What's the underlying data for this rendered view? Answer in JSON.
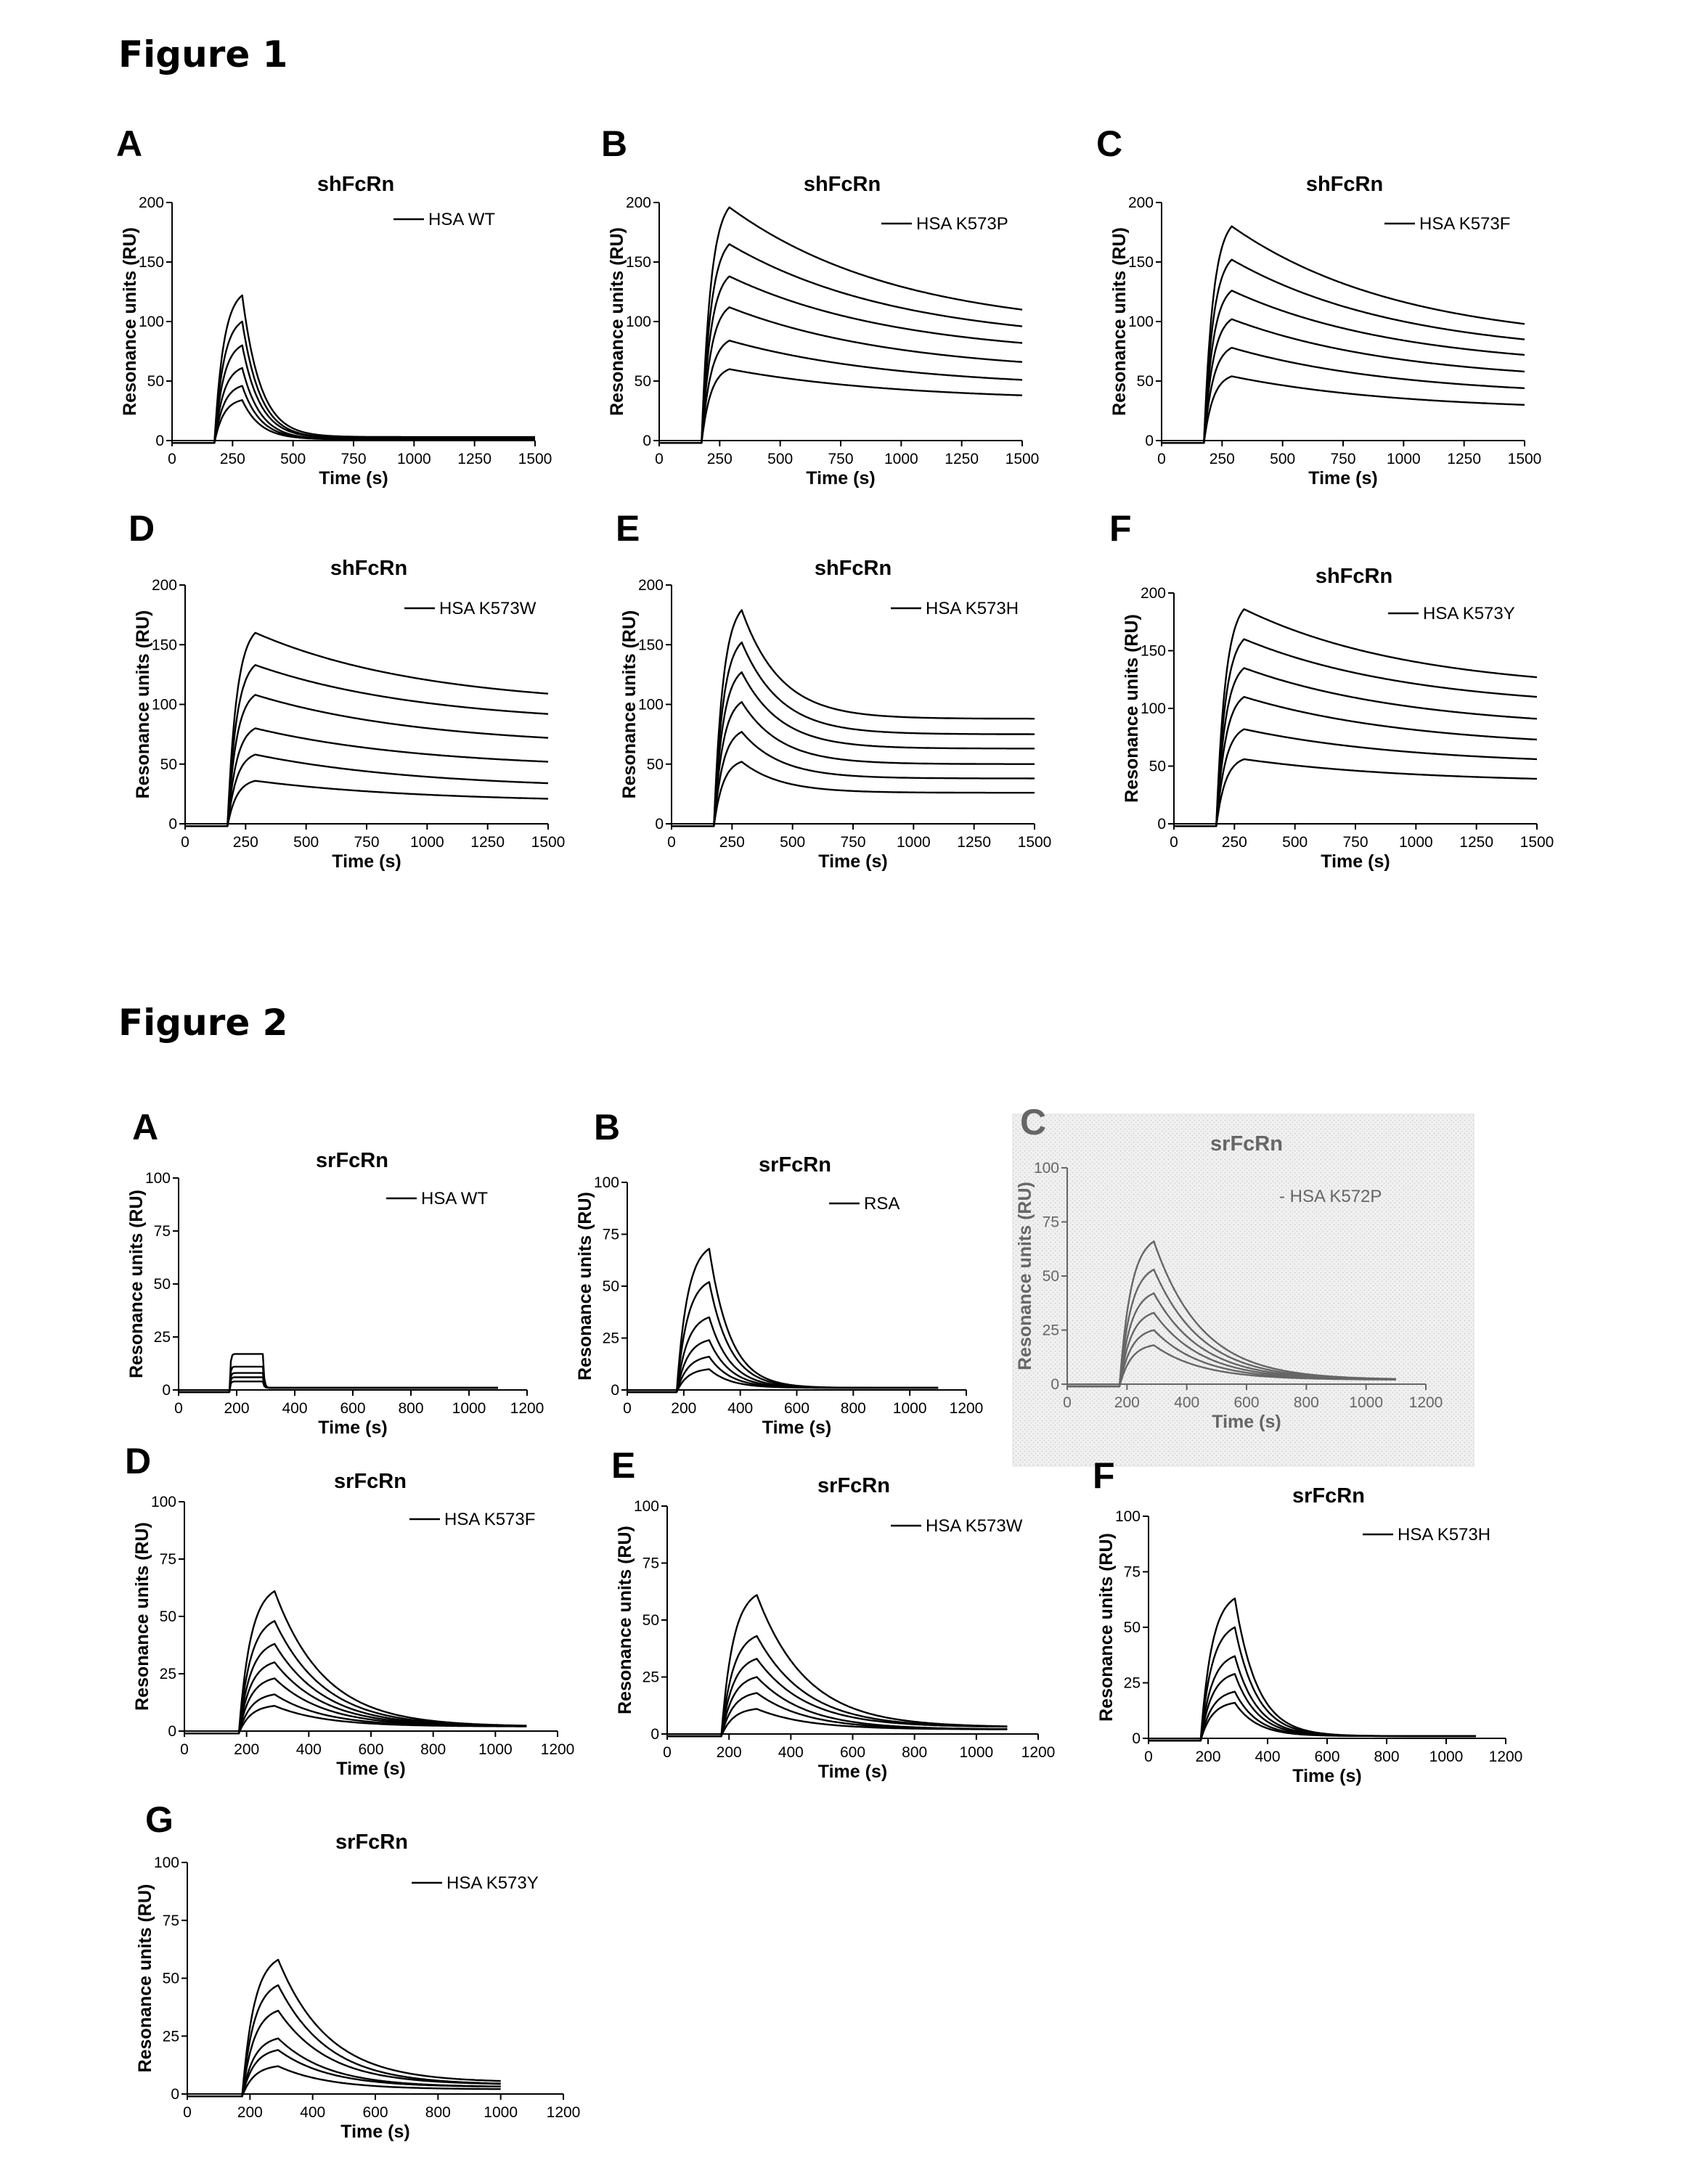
{
  "figures": [
    {
      "title": "Figure 1"
    },
    {
      "title": "Figure 2"
    }
  ],
  "chart_data": [
    {
      "figure": "Figure 1",
      "panel": "A",
      "type": "line",
      "title": "shFcRn",
      "xlabel": "Time (s)",
      "ylabel": "Resonance units (RU)",
      "xlim": [
        0,
        1500
      ],
      "ylim": [
        0,
        200
      ],
      "xticks": [
        0,
        250,
        500,
        750,
        1000,
        1250,
        1500
      ],
      "yticks": [
        0,
        50,
        100,
        150,
        200
      ],
      "legend": "HSA WT",
      "injection_start_s": 175,
      "injection_end_s": 290,
      "baseline": -2,
      "peaks": [
        122,
        100,
        80,
        61,
        46,
        34
      ],
      "ends": [
        3,
        2,
        2,
        1,
        1,
        1
      ],
      "decay": "fast"
    },
    {
      "figure": "Figure 1",
      "panel": "B",
      "type": "line",
      "title": "shFcRn",
      "xlabel": "Time (s)",
      "ylabel": "Resonance units (RU)",
      "xlim": [
        0,
        1500
      ],
      "ylim": [
        0,
        200
      ],
      "xticks": [
        0,
        250,
        500,
        750,
        1000,
        1250,
        1500
      ],
      "yticks": [
        0,
        50,
        100,
        150,
        200
      ],
      "legend": "HSA K573P",
      "injection_start_s": 175,
      "injection_end_s": 290,
      "baseline": -2,
      "peaks": [
        196,
        165,
        138,
        112,
        84,
        60
      ],
      "ends": [
        110,
        96,
        82,
        66,
        51,
        38
      ],
      "decay": "slow"
    },
    {
      "figure": "Figure 1",
      "panel": "C",
      "type": "line",
      "title": "shFcRn",
      "xlabel": "Time (s)",
      "ylabel": "Resonance units (RU)",
      "xlim": [
        0,
        1500
      ],
      "ylim": [
        0,
        200
      ],
      "xticks": [
        0,
        250,
        500,
        750,
        1000,
        1250,
        1500
      ],
      "yticks": [
        0,
        50,
        100,
        150,
        200
      ],
      "legend": "HSA K573F",
      "injection_start_s": 175,
      "injection_end_s": 290,
      "baseline": -2,
      "peaks": [
        180,
        152,
        126,
        102,
        78,
        54
      ],
      "ends": [
        98,
        85,
        72,
        58,
        44,
        30
      ],
      "decay": "slow"
    },
    {
      "figure": "Figure 1",
      "panel": "D",
      "type": "line",
      "title": "shFcRn",
      "xlabel": "Time (s)",
      "ylabel": "Resonance units (RU)",
      "xlim": [
        0,
        1500
      ],
      "ylim": [
        0,
        200
      ],
      "xticks": [
        0,
        250,
        500,
        750,
        1000,
        1250,
        1500
      ],
      "yticks": [
        0,
        50,
        100,
        150,
        200
      ],
      "legend": "HSA K573W",
      "injection_start_s": 175,
      "injection_end_s": 290,
      "baseline": -2,
      "peaks": [
        160,
        133,
        108,
        80,
        58,
        36
      ],
      "ends": [
        109,
        92,
        72,
        52,
        34,
        21
      ],
      "decay": "slow"
    },
    {
      "figure": "Figure 1",
      "panel": "E",
      "type": "line",
      "title": "shFcRn",
      "xlabel": "Time (s)",
      "ylabel": "Resonance units (RU)",
      "xlim": [
        0,
        1500
      ],
      "ylim": [
        0,
        200
      ],
      "xticks": [
        0,
        250,
        500,
        750,
        1000,
        1250,
        1500
      ],
      "yticks": [
        0,
        50,
        100,
        150,
        200
      ],
      "legend": "HSA K573H",
      "injection_start_s": 175,
      "injection_end_s": 290,
      "baseline": -2,
      "peaks": [
        179,
        152,
        127,
        102,
        77,
        52
      ],
      "ends": [
        88,
        75,
        63,
        50,
        38,
        26
      ],
      "decay": "medium"
    },
    {
      "figure": "Figure 1",
      "panel": "F",
      "type": "line",
      "title": "shFcRn",
      "xlabel": "Time (s)",
      "ylabel": "Resonance units (RU)",
      "xlim": [
        0,
        1500
      ],
      "ylim": [
        0,
        200
      ],
      "xticks": [
        0,
        250,
        500,
        750,
        1000,
        1250,
        1500
      ],
      "yticks": [
        0,
        50,
        100,
        150,
        200
      ],
      "legend": "HSA K573Y",
      "injection_start_s": 175,
      "injection_end_s": 290,
      "baseline": -2,
      "peaks": [
        186,
        160,
        135,
        110,
        82,
        56
      ],
      "ends": [
        127,
        110,
        91,
        73,
        56,
        39
      ],
      "decay": "slow"
    },
    {
      "figure": "Figure 2",
      "panel": "A",
      "type": "line",
      "title": "srFcRn",
      "xlabel": "Time (s)",
      "ylabel": "Resonance units (RU)",
      "xlim": [
        0,
        1200
      ],
      "ylim": [
        0,
        100
      ],
      "xticks": [
        0,
        200,
        400,
        600,
        800,
        1000,
        1200
      ],
      "yticks": [
        0,
        25,
        50,
        75,
        100
      ],
      "legend": "HSA WT",
      "injection_start_s": 175,
      "injection_end_s": 290,
      "baseline": -1,
      "data_end_s": 1100,
      "peaks": [
        17,
        11,
        8,
        6,
        4
      ],
      "ends": [
        1,
        1,
        1,
        1,
        1
      ],
      "decay": "square"
    },
    {
      "figure": "Figure 2",
      "panel": "B",
      "type": "line",
      "title": "srFcRn",
      "xlabel": "Time (s)",
      "ylabel": "Resonance units (RU)",
      "xlim": [
        0,
        1200
      ],
      "ylim": [
        0,
        100
      ],
      "xticks": [
        0,
        200,
        400,
        600,
        800,
        1000,
        1200
      ],
      "yticks": [
        0,
        25,
        50,
        75,
        100
      ],
      "legend": "RSA",
      "injection_start_s": 175,
      "injection_end_s": 290,
      "baseline": -1,
      "data_end_s": 1100,
      "peaks": [
        68,
        52,
        35,
        24,
        16,
        10
      ],
      "ends": [
        1,
        1,
        1,
        1,
        1,
        1
      ],
      "decay": "fast"
    },
    {
      "figure": "Figure 2",
      "panel": "C",
      "type": "line",
      "title": "srFcRn",
      "xlabel": "Time (s)",
      "ylabel": "Resonance units (RU)",
      "xlim": [
        0,
        1200
      ],
      "ylim": [
        0,
        100
      ],
      "xticks": [
        0,
        200,
        400,
        600,
        800,
        1000,
        1200
      ],
      "yticks": [
        0,
        25,
        50,
        75,
        100
      ],
      "legend": "- HSA K572P",
      "background": "#ececec",
      "line_color": "#666666",
      "injection_start_s": 175,
      "injection_end_s": 290,
      "baseline": -1,
      "data_end_s": 1100,
      "peaks": [
        66,
        53,
        42,
        33,
        25,
        18
      ],
      "ends": [
        2,
        2,
        2,
        2,
        2,
        2
      ],
      "decay": "medium"
    },
    {
      "figure": "Figure 2",
      "panel": "D",
      "type": "line",
      "title": "srFcRn",
      "xlabel": "Time (s)",
      "ylabel": "Resonance units (RU)",
      "xlim": [
        0,
        1200
      ],
      "ylim": [
        0,
        100
      ],
      "xticks": [
        0,
        200,
        400,
        600,
        800,
        1000,
        1200
      ],
      "yticks": [
        0,
        25,
        50,
        75,
        100
      ],
      "legend": "HSA K573F",
      "injection_start_s": 175,
      "injection_end_s": 290,
      "baseline": -1,
      "data_end_s": 1100,
      "peaks": [
        61,
        48,
        38,
        30,
        23,
        16,
        11
      ],
      "ends": [
        2,
        2,
        2,
        2,
        2,
        2,
        2
      ],
      "decay": "medium"
    },
    {
      "figure": "Figure 2",
      "panel": "E",
      "type": "line",
      "title": "srFcRn",
      "xlabel": "Time (s)",
      "ylabel": "Resonance units (RU)",
      "xlim": [
        0,
        1200
      ],
      "ylim": [
        0,
        100
      ],
      "xticks": [
        0,
        200,
        400,
        600,
        800,
        1000,
        1200
      ],
      "yticks": [
        0,
        25,
        50,
        75,
        100
      ],
      "legend": "HSA K573W",
      "injection_start_s": 175,
      "injection_end_s": 290,
      "baseline": -1,
      "data_end_s": 1100,
      "peaks": [
        61,
        43,
        33,
        25,
        18,
        11
      ],
      "ends": [
        3,
        3,
        3,
        2,
        2,
        2
      ],
      "decay": "medium"
    },
    {
      "figure": "Figure 2",
      "panel": "F",
      "type": "line",
      "title": "srFcRn",
      "xlabel": "Time (s)",
      "ylabel": "Resonance units (RU)",
      "xlim": [
        0,
        1200
      ],
      "ylim": [
        0,
        100
      ],
      "xticks": [
        0,
        200,
        400,
        600,
        800,
        1000,
        1200
      ],
      "yticks": [
        0,
        25,
        50,
        75,
        100
      ],
      "legend": "HSA K573H",
      "injection_start_s": 175,
      "injection_end_s": 290,
      "baseline": -1,
      "data_end_s": 1100,
      "peaks": [
        63,
        50,
        37,
        29,
        21,
        16
      ],
      "ends": [
        1,
        1,
        1,
        1,
        1,
        1
      ],
      "decay": "fast"
    },
    {
      "figure": "Figure 2",
      "panel": "G",
      "type": "line",
      "title": "srFcRn",
      "xlabel": "Time (s)",
      "ylabel": "Resonance units (RU)",
      "xlim": [
        0,
        1200
      ],
      "ylim": [
        0,
        100
      ],
      "xticks": [
        0,
        200,
        400,
        600,
        800,
        1000,
        1200
      ],
      "yticks": [
        0,
        25,
        50,
        75,
        100
      ],
      "legend": "HSA K573Y",
      "injection_start_s": 175,
      "injection_end_s": 290,
      "baseline": -1,
      "data_end_s": 1000,
      "peaks": [
        58,
        47,
        36,
        24,
        19,
        12
      ],
      "ends": [
        5,
        4,
        4,
        3,
        3,
        2
      ],
      "decay": "medium"
    }
  ]
}
